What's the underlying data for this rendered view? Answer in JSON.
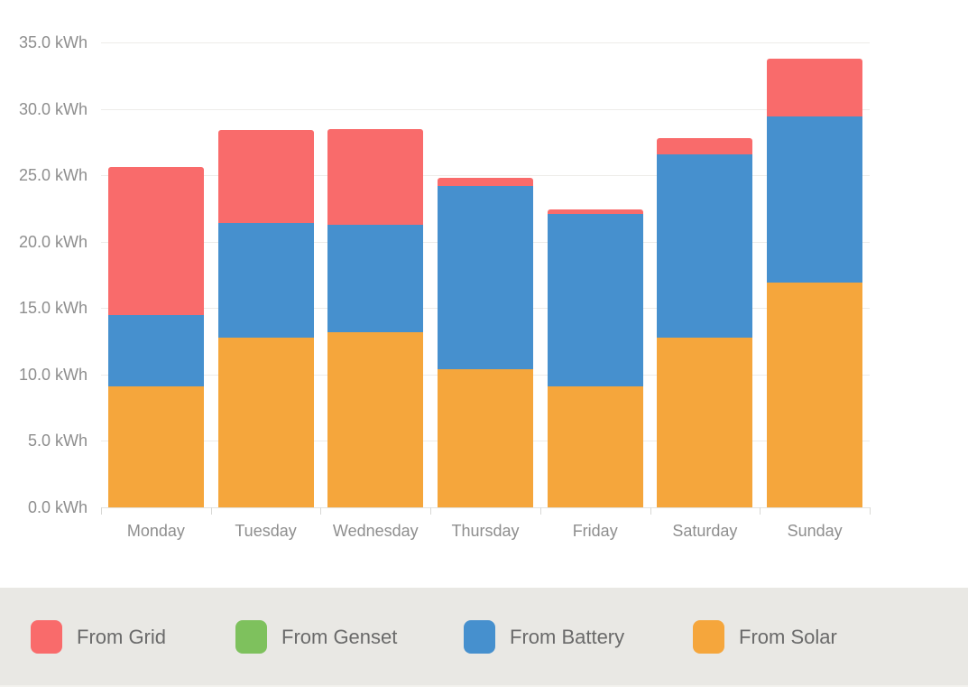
{
  "chart_data": {
    "type": "bar",
    "stacked": true,
    "title": "",
    "categories": [
      "Monday",
      "Tuesday",
      "Wednesday",
      "Thursday",
      "Friday",
      "Saturday",
      "Sunday"
    ],
    "series": [
      {
        "name": "From Grid",
        "color": "#f96b6b",
        "values": [
          11.1,
          7.0,
          7.2,
          0.6,
          0.3,
          1.2,
          4.4
        ]
      },
      {
        "name": "From Genset",
        "color": "#7ec15d",
        "values": [
          0,
          0,
          0,
          0,
          0,
          0,
          0
        ]
      },
      {
        "name": "From Battery",
        "color": "#4690ce",
        "values": [
          5.4,
          8.6,
          8.1,
          13.8,
          13.0,
          13.8,
          12.5
        ]
      },
      {
        "name": "From Solar",
        "color": "#f5a63c",
        "values": [
          9.1,
          12.8,
          13.2,
          10.4,
          9.1,
          12.8,
          16.9
        ]
      }
    ],
    "stack_order_bottom_to_top": [
      "From Solar",
      "From Battery",
      "From Genset",
      "From Grid"
    ],
    "totals": [
      25.6,
      28.4,
      28.5,
      24.8,
      22.4,
      27.8,
      33.8
    ],
    "y_axis": {
      "unit": "kWh",
      "min": 0,
      "max": 35,
      "tick_step": 5,
      "ticks": [
        0,
        5,
        10,
        15,
        20,
        25,
        30,
        35
      ],
      "tick_labels": [
        "0.0 kWh",
        "5.0 kWh",
        "10.0 kWh",
        "15.0 kWh",
        "20.0 kWh",
        "25.0 kWh",
        "30.0 kWh",
        "35.0 kWh"
      ]
    },
    "legend": {
      "position": "bottom",
      "items": [
        "From Grid",
        "From Genset",
        "From Battery",
        "From Solar"
      ]
    },
    "grid": true
  },
  "colors": {
    "background": "#ffffff",
    "gridline": "#edece9",
    "axis_tick": "#d8d8d5",
    "axis_text": "#8e8e8e",
    "legend_background": "#e9e8e4",
    "legend_text": "#6a6a6a"
  }
}
